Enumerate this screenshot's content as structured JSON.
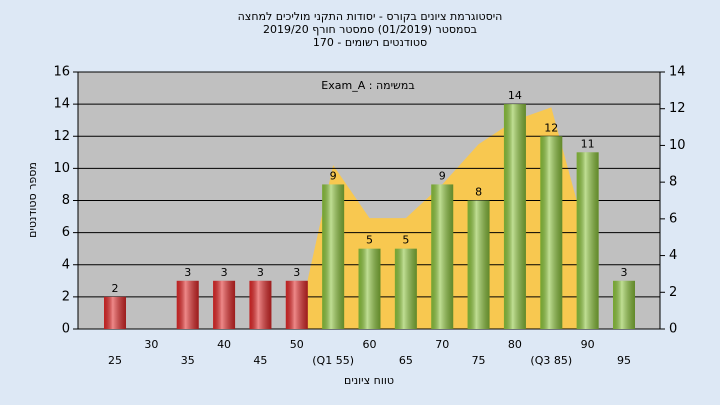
{
  "chart_data": {
    "type": "bar",
    "title": [
      "היסטוגרמת ציונים בקורס - יסודות התקני מוליכים למחצה",
      "בסמסטר (01/2019)  סמסטר חורף 2019/20",
      "סטודנטים רשומים - 170"
    ],
    "annotation": "Exam_A : במשימה",
    "ylabel": "מספר סטודנטים",
    "xlabel": "טווח ציונים",
    "categories": [
      "25",
      "30",
      "35",
      "40",
      "45",
      "50",
      "(Q1 55)",
      "60",
      "65",
      "70",
      "75",
      "80",
      "(Q3 85)",
      "90",
      "95"
    ],
    "values": [
      2,
      null,
      3,
      3,
      3,
      3,
      9,
      5,
      5,
      9,
      8,
      14,
      12,
      11,
      3
    ],
    "colors": [
      "#e02828",
      "#e02828",
      "#e02828",
      "#e02828",
      "#e02828",
      "#e02828",
      "#8cc43c",
      "#8cc43c",
      "#8cc43c",
      "#8cc43c",
      "#8cc43c",
      "#8cc43c",
      "#8cc43c",
      "#8cc43c",
      "#8cc43c"
    ],
    "area": {
      "color": "#f8c850",
      "x": [
        50,
        55,
        60,
        65,
        70,
        75,
        80,
        85,
        90
      ],
      "values": [
        0,
        10.2,
        6.9,
        6.9,
        9,
        11.5,
        13,
        13.8,
        5.5
      ]
    },
    "xlim": [
      25,
      95
    ],
    "ylim": [
      0,
      16
    ],
    "yticks": [
      0,
      2,
      4,
      6,
      8,
      10,
      12,
      14,
      16
    ],
    "y2lim": [
      0,
      14
    ],
    "y2ticks": [
      0,
      2,
      4,
      6,
      8,
      10,
      12,
      14
    ],
    "grid": true
  }
}
